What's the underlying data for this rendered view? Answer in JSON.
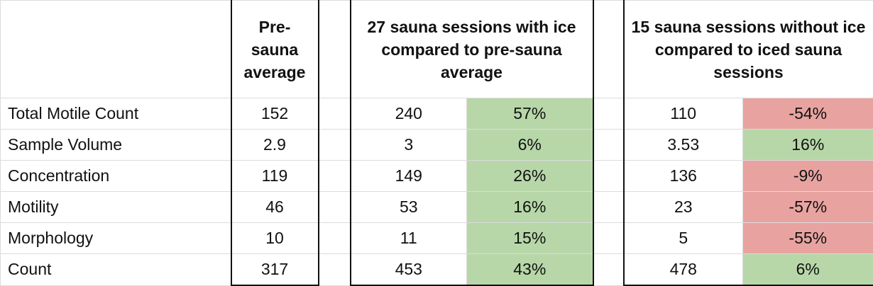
{
  "table": {
    "headers": {
      "pre": "Pre-sauna average",
      "iced": "27 sauna sessions with ice compared to pre-sauna average",
      "noice": "15 sauna sessions without ice compared to iced sauna sessions"
    },
    "colors": {
      "positive": "#b7d7a8",
      "negative": "#e8a3a0"
    },
    "rows": [
      {
        "label": "Total Motile Count",
        "pre": 152,
        "iced": 240,
        "iced_change": {
          "value": 57,
          "label": "57%"
        },
        "noice": 110,
        "noice_change": {
          "value": -54,
          "label": "-54%"
        }
      },
      {
        "label": "Sample Volume",
        "pre": 2.9,
        "iced": 3,
        "iced_change": {
          "value": 6,
          "label": "6%"
        },
        "noice": 3.53,
        "noice_change": {
          "value": 16,
          "label": "16%"
        }
      },
      {
        "label": "Concentration",
        "pre": 119,
        "iced": 149,
        "iced_change": {
          "value": 26,
          "label": "26%"
        },
        "noice": 136,
        "noice_change": {
          "value": -9,
          "label": "-9%"
        }
      },
      {
        "label": "Motility",
        "pre": 46,
        "iced": 53,
        "iced_change": {
          "value": 16,
          "label": "16%"
        },
        "noice": 23,
        "noice_change": {
          "value": -57,
          "label": "-57%"
        }
      },
      {
        "label": "Morphology",
        "pre": 10,
        "iced": 11,
        "iced_change": {
          "value": 15,
          "label": "15%"
        },
        "noice": 5,
        "noice_change": {
          "value": -55,
          "label": "-55%"
        }
      },
      {
        "label": "Count",
        "pre": 317,
        "iced": 453,
        "iced_change": {
          "value": 43,
          "label": "43%"
        },
        "noice": 478,
        "noice_change": {
          "value": 6,
          "label": "6%"
        }
      }
    ]
  }
}
